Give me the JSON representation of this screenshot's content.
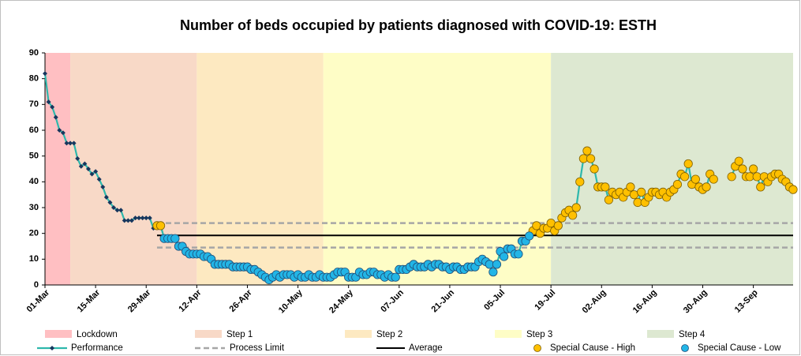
{
  "chart_data": {
    "type": "line",
    "title": "Number of beds occupied by patients diagnosed with COVID-19: ESTH",
    "categories": [
      "01-Mar",
      null,
      null,
      null,
      null,
      null,
      null,
      null,
      null,
      null,
      null,
      null,
      null,
      null,
      "15-Mar",
      null,
      null,
      null,
      null,
      null,
      null,
      null,
      null,
      null,
      null,
      null,
      null,
      null,
      "29-Mar",
      null,
      null,
      null,
      null,
      null,
      null,
      null,
      null,
      null,
      null,
      null,
      null,
      null,
      "12-Apr",
      null,
      null,
      null,
      null,
      null,
      null,
      null,
      null,
      null,
      null,
      null,
      null,
      null,
      "26-Apr",
      null,
      null,
      null,
      null,
      null,
      null,
      null,
      null,
      null,
      null,
      null,
      null,
      null,
      "10-May",
      null,
      null,
      null,
      null,
      null,
      null,
      null,
      null,
      null,
      null,
      null,
      null,
      null,
      "24-May",
      null,
      null,
      null,
      null,
      null,
      null,
      null,
      null,
      null,
      null,
      null,
      null,
      null,
      "07-Jun",
      null,
      null,
      null,
      null,
      null,
      null,
      null,
      null,
      null,
      null,
      null,
      null,
      null,
      "21-Jun",
      null,
      null,
      null,
      null,
      null,
      null,
      null,
      null,
      null,
      null,
      null,
      null,
      null,
      "05-Jul",
      null,
      null,
      null,
      null,
      null,
      null,
      null,
      null,
      null,
      null,
      null,
      null,
      null,
      "19-Jul",
      null,
      null,
      null,
      null,
      null,
      null,
      null,
      null,
      null,
      null,
      null,
      null,
      null,
      "02-Aug",
      null,
      null,
      null,
      null,
      null,
      null,
      null,
      null,
      null,
      null,
      null,
      null,
      null,
      "16-Aug",
      null,
      null,
      null,
      null,
      null,
      null,
      null,
      null,
      null,
      null,
      null,
      null,
      null,
      "30-Aug",
      null,
      null,
      null,
      null,
      null,
      null,
      null,
      null,
      null,
      null,
      null,
      null,
      null,
      "13-Sep",
      null,
      null,
      null,
      null,
      null,
      null,
      null,
      null,
      null,
      null,
      null
    ],
    "series": [
      {
        "name": "Performance",
        "color": "#2eb8ac",
        "marker_color": "#17365d",
        "values": [
          82,
          71,
          69,
          65,
          60,
          59,
          55,
          55,
          55,
          49,
          46,
          47,
          45,
          43,
          44,
          41,
          38,
          34,
          32,
          30,
          29,
          29,
          25,
          25,
          25,
          26,
          26,
          26,
          26,
          26,
          22,
          23,
          23,
          18,
          18,
          18,
          18,
          15,
          15,
          13,
          12,
          12,
          12,
          12,
          11,
          11,
          10,
          8,
          8,
          8,
          8,
          8,
          7,
          7,
          7,
          7,
          7,
          6,
          6,
          5,
          4,
          3,
          2,
          3,
          4,
          3,
          4,
          4,
          4,
          3,
          4,
          3,
          3,
          4,
          3,
          3,
          4,
          3,
          3,
          3,
          4,
          5,
          5,
          5,
          3,
          3,
          3,
          5,
          4,
          4,
          5,
          5,
          4,
          4,
          3,
          4,
          3,
          3,
          6,
          6,
          6,
          7,
          8,
          7,
          7,
          7,
          8,
          7,
          8,
          8,
          7,
          7,
          6,
          7,
          7,
          6,
          6,
          7,
          7,
          7,
          9,
          10,
          9,
          8,
          5,
          8,
          13,
          11,
          14,
          14,
          12,
          12,
          17,
          17,
          19,
          21,
          23,
          20,
          22,
          22,
          24,
          21,
          23,
          26,
          28,
          29,
          27,
          30,
          40,
          49,
          52,
          49,
          45,
          38,
          38,
          38,
          33,
          36,
          35,
          36,
          34,
          36,
          38,
          35,
          32,
          36,
          32,
          34,
          36,
          36,
          35,
          36,
          34,
          36,
          37,
          39,
          43,
          42,
          47,
          39,
          41,
          38,
          37,
          38,
          43,
          41,
          null,
          null,
          null,
          null,
          42,
          46,
          48,
          45,
          42,
          42,
          45,
          42,
          38,
          42,
          40,
          42,
          43,
          43,
          41,
          40,
          38,
          37
        ]
      },
      {
        "name": "Special Cause - High",
        "color": "#ffc000",
        "values": [
          null,
          null,
          null,
          null,
          null,
          null,
          null,
          null,
          null,
          null,
          null,
          null,
          null,
          null,
          null,
          null,
          null,
          null,
          null,
          null,
          null,
          null,
          null,
          null,
          null,
          null,
          null,
          null,
          null,
          null,
          null,
          23,
          23,
          null,
          null,
          null,
          null,
          null,
          null,
          null,
          null,
          null,
          null,
          null,
          null,
          null,
          null,
          null,
          null,
          null,
          null,
          null,
          null,
          null,
          null,
          null,
          null,
          null,
          null,
          null,
          null,
          null,
          null,
          null,
          null,
          null,
          null,
          null,
          null,
          null,
          null,
          null,
          null,
          null,
          null,
          null,
          null,
          null,
          null,
          null,
          null,
          null,
          null,
          null,
          null,
          null,
          null,
          null,
          null,
          null,
          null,
          null,
          null,
          null,
          null,
          null,
          null,
          null,
          null,
          null,
          null,
          null,
          null,
          null,
          null,
          null,
          null,
          null,
          null,
          null,
          null,
          null,
          null,
          null,
          null,
          null,
          null,
          null,
          null,
          null,
          null,
          null,
          null,
          null,
          null,
          null,
          null,
          null,
          null,
          null,
          null,
          null,
          null,
          null,
          null,
          21,
          23,
          20,
          22,
          22,
          24,
          21,
          23,
          26,
          28,
          29,
          27,
          30,
          40,
          49,
          52,
          49,
          45,
          38,
          38,
          38,
          33,
          36,
          35,
          36,
          34,
          36,
          38,
          35,
          32,
          36,
          32,
          34,
          36,
          36,
          35,
          36,
          34,
          36,
          37,
          39,
          43,
          42,
          47,
          39,
          41,
          38,
          37,
          38,
          43,
          41,
          null,
          null,
          null,
          null,
          42,
          46,
          48,
          45,
          42,
          42,
          45,
          42,
          38,
          42,
          40,
          42,
          43,
          43,
          41,
          40,
          38,
          37
        ]
      },
      {
        "name": "Special Cause - Low",
        "color": "#22b5e6",
        "values": [
          null,
          null,
          null,
          null,
          null,
          null,
          null,
          null,
          null,
          null,
          null,
          null,
          null,
          null,
          null,
          null,
          null,
          null,
          null,
          null,
          null,
          null,
          null,
          null,
          null,
          null,
          null,
          null,
          null,
          null,
          null,
          null,
          null,
          18,
          18,
          18,
          18,
          15,
          15,
          13,
          12,
          12,
          12,
          12,
          11,
          11,
          10,
          8,
          8,
          8,
          8,
          8,
          7,
          7,
          7,
          7,
          7,
          6,
          6,
          5,
          4,
          3,
          2,
          3,
          4,
          3,
          4,
          4,
          4,
          3,
          4,
          3,
          3,
          4,
          3,
          3,
          4,
          3,
          3,
          3,
          4,
          5,
          5,
          5,
          3,
          3,
          3,
          5,
          4,
          4,
          5,
          5,
          4,
          4,
          3,
          4,
          3,
          3,
          6,
          6,
          6,
          7,
          8,
          7,
          7,
          7,
          8,
          7,
          8,
          8,
          7,
          7,
          6,
          7,
          7,
          6,
          6,
          7,
          7,
          7,
          9,
          10,
          9,
          8,
          5,
          8,
          13,
          11,
          14,
          14,
          12,
          12,
          17,
          17,
          19,
          null,
          null,
          null,
          null,
          null,
          null,
          null,
          null,
          null,
          null,
          null,
          null,
          null,
          null,
          null,
          null,
          null,
          null,
          null,
          null,
          null,
          null,
          null,
          null,
          null,
          null,
          null,
          null,
          null,
          null,
          null,
          null,
          null,
          null,
          null,
          null,
          null,
          null,
          null,
          null,
          null,
          null,
          null,
          null,
          null,
          null,
          null,
          null,
          null,
          null,
          null,
          null,
          null,
          null,
          null,
          null,
          null,
          null,
          null,
          null,
          null,
          null,
          null,
          null,
          null,
          null,
          null,
          null,
          null,
          null,
          null,
          null,
          null
        ]
      }
    ],
    "process_limit": {
      "name": "Process Limit",
      "color": "#a6a6a6",
      "upper": 24,
      "lower": 14.5
    },
    "average": {
      "name": "Average",
      "color": "#000000",
      "value": 19.2
    },
    "phases": [
      {
        "name": "Lockdown",
        "color": "#ffbfc2",
        "start": 0
      },
      {
        "name": "Step 1",
        "color": "#f8d9c7",
        "start": 7
      },
      {
        "name": "Step 2",
        "color": "#fde9c1",
        "start": 42
      },
      {
        "name": "Step 3",
        "color": "#fefdc6",
        "start": 77
      },
      {
        "name": "Step 4",
        "color": "#dde8d1",
        "start": 140
      }
    ],
    "ylim": [
      0,
      90
    ],
    "yticks": [
      0,
      10,
      20,
      30,
      40,
      50,
      60,
      70,
      80,
      90
    ]
  }
}
